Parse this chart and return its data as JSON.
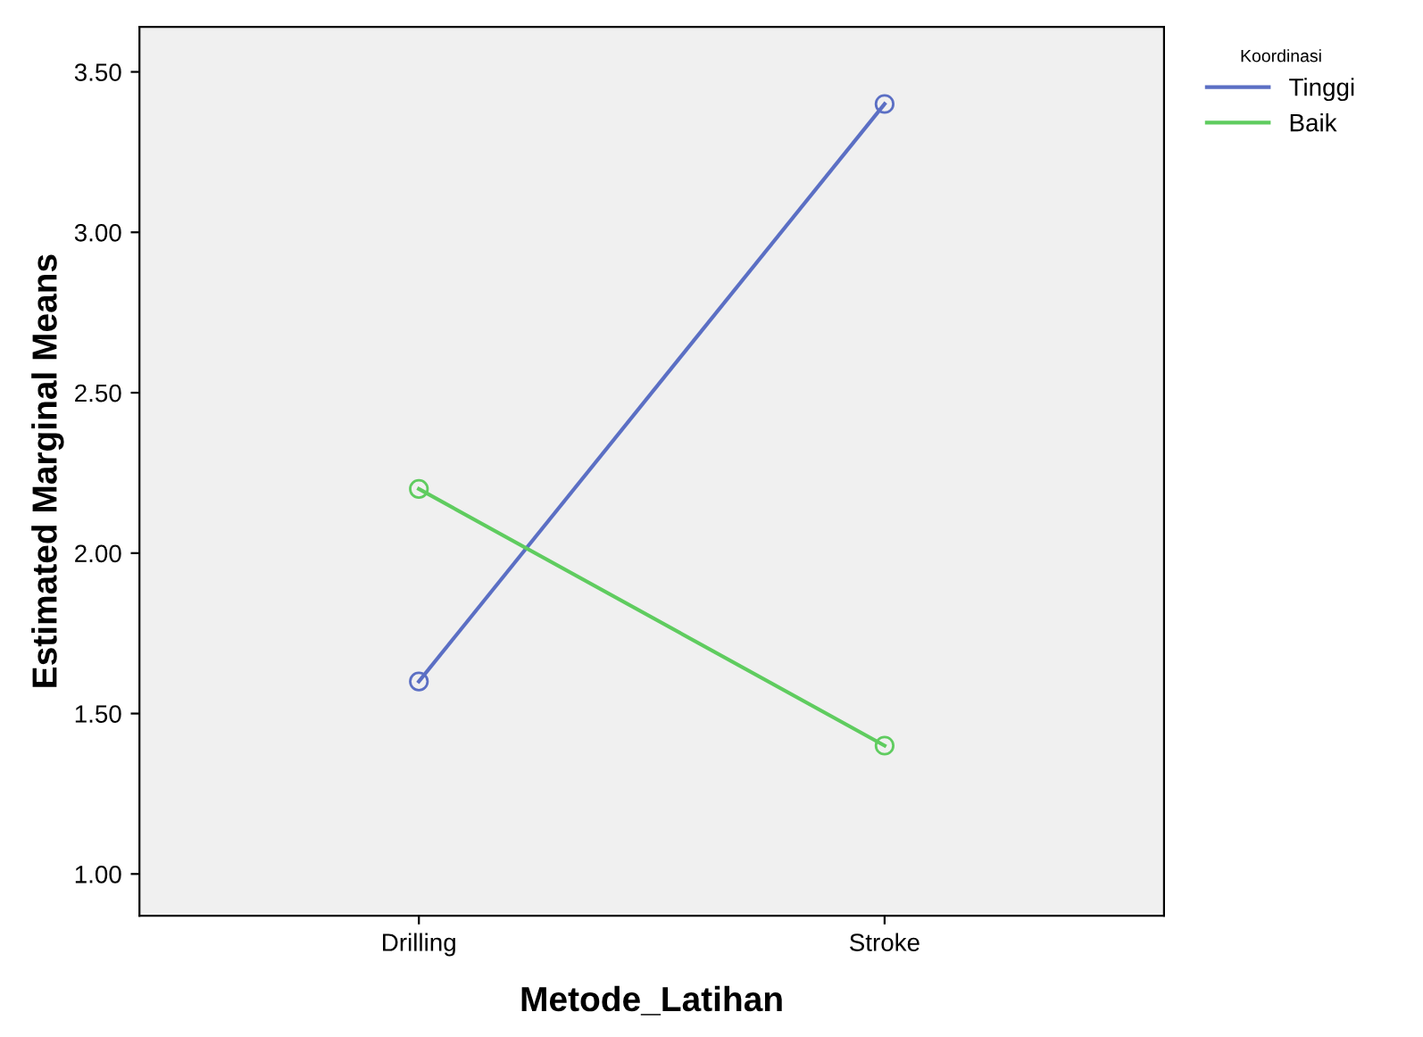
{
  "chart_data": {
    "type": "line",
    "xlabel": "Metode_Latihan",
    "ylabel": "Estimated Marginal Means",
    "legend_title": "Koordinasi",
    "categories": [
      "Drilling",
      "Stroke"
    ],
    "series": [
      {
        "name": "Tinggi",
        "color": "#5b6fc4",
        "values": [
          1.6,
          3.4
        ]
      },
      {
        "name": "Baik",
        "color": "#5fcc5f",
        "values": [
          2.2,
          1.4
        ]
      }
    ],
    "ylim": [
      0.87,
      3.64
    ],
    "yticks": [
      {
        "value": 1.0,
        "label": "1.00"
      },
      {
        "value": 1.5,
        "label": "1.50"
      },
      {
        "value": 2.0,
        "label": "2.00"
      },
      {
        "value": 2.5,
        "label": "2.50"
      },
      {
        "value": 3.0,
        "label": "3.00"
      },
      {
        "value": 3.5,
        "label": "3.50"
      }
    ],
    "marker": "circle",
    "line_style": "solid",
    "grid": false,
    "legend": "top right"
  }
}
